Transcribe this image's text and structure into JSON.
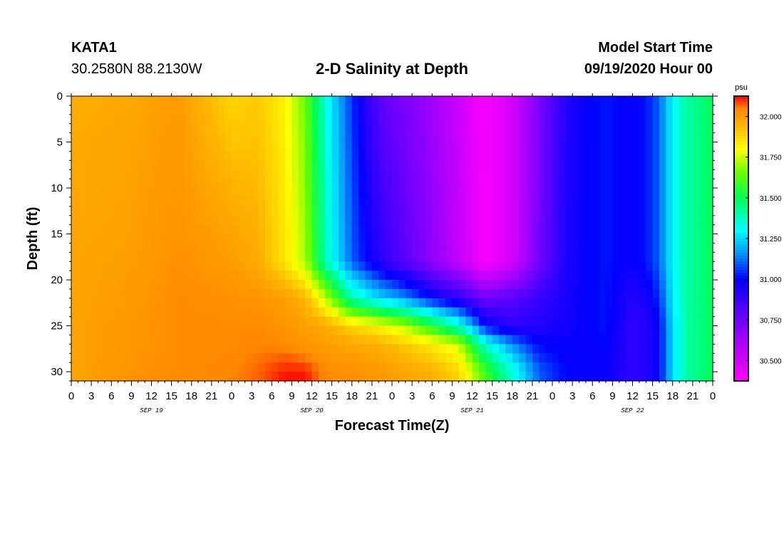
{
  "header": {
    "station_id": "KATA1",
    "station_coords": "30.2580N 88.2130W",
    "title": "2-D Salinity at Depth",
    "model_start_label": "Model Start Time",
    "model_start_value": "09/19/2020 Hour 00"
  },
  "chart_data": {
    "type": "heatmap",
    "title": "2-D Salinity at Depth",
    "xlabel": "Forecast Time(Z)",
    "ylabel": "Depth (ft)",
    "x_tick_labels": [
      "0",
      "3",
      "6",
      "9",
      "12",
      "15",
      "18",
      "21",
      "0",
      "3",
      "6",
      "9",
      "12",
      "15",
      "18",
      "21",
      "0",
      "3",
      "6",
      "9",
      "12",
      "15",
      "18",
      "21",
      "0",
      "3",
      "6",
      "9",
      "12",
      "15",
      "18",
      "21",
      "0"
    ],
    "x_range_hours": [
      0,
      96
    ],
    "day_labels": [
      {
        "text": "SEP 19",
        "hour": 12
      },
      {
        "text": "SEP 20",
        "hour": 36
      },
      {
        "text": "SEP 21",
        "hour": 60
      },
      {
        "text": "SEP 22",
        "hour": 84
      }
    ],
    "y_ticks": [
      0,
      5,
      10,
      15,
      20,
      25,
      30
    ],
    "y_range": [
      0,
      31
    ],
    "y_inverted": true,
    "colorbar": {
      "unit": "psu",
      "min": 30.375,
      "max": 32.125,
      "ticks": [
        32.0,
        31.75,
        31.5,
        31.25,
        31.0,
        30.75,
        30.5
      ],
      "tick_labels": [
        "32.000",
        "31.750",
        "31.500",
        "31.250",
        "31.000",
        "30.750",
        "30.500"
      ],
      "color_stops": [
        {
          "v": 30.375,
          "c": "#ff00ff"
        },
        {
          "v": 30.6,
          "c": "#b000ff"
        },
        {
          "v": 30.8,
          "c": "#5a00ff"
        },
        {
          "v": 31.0,
          "c": "#0000ff"
        },
        {
          "v": 31.15,
          "c": "#0090ff"
        },
        {
          "v": 31.3,
          "c": "#00ffff"
        },
        {
          "v": 31.5,
          "c": "#00ff55"
        },
        {
          "v": 31.65,
          "c": "#66ff00"
        },
        {
          "v": 31.8,
          "c": "#ffff00"
        },
        {
          "v": 31.95,
          "c": "#ffb000"
        },
        {
          "v": 32.05,
          "c": "#ff8800"
        },
        {
          "v": 32.125,
          "c": "#ff0000"
        }
      ]
    },
    "field_profiles": {
      "depths": [
        0,
        18,
        22,
        25,
        27,
        30,
        31
      ],
      "times": [
        0,
        8,
        16,
        24,
        28,
        32,
        35,
        37,
        39,
        42,
        46,
        50,
        54,
        58,
        60,
        62,
        66,
        70,
        74,
        78,
        80,
        84,
        86,
        88,
        90,
        92,
        96
      ],
      "values": [
        [
          31.96,
          31.98,
          31.98,
          31.98,
          31.98,
          31.98,
          31.98
        ],
        [
          31.97,
          31.99,
          32.0,
          32.01,
          32.01,
          32.02,
          32.02
        ],
        [
          32.0,
          32.03,
          32.04,
          32.04,
          32.04,
          32.04,
          32.04
        ],
        [
          31.88,
          32.0,
          32.03,
          32.04,
          32.04,
          32.05,
          32.05
        ],
        [
          31.9,
          31.96,
          32.02,
          32.04,
          32.05,
          32.07,
          32.07
        ],
        [
          31.82,
          31.85,
          31.99,
          32.02,
          32.04,
          32.11,
          32.12
        ],
        [
          31.65,
          31.72,
          31.94,
          31.99,
          32.01,
          32.11,
          32.12
        ],
        [
          31.45,
          31.5,
          31.82,
          31.98,
          32.0,
          32.06,
          32.06
        ],
        [
          31.26,
          31.31,
          31.66,
          31.95,
          31.99,
          32.04,
          32.04
        ],
        [
          31.05,
          31.1,
          31.4,
          31.88,
          31.97,
          32.03,
          32.03
        ],
        [
          30.8,
          30.92,
          31.25,
          31.82,
          31.95,
          32.01,
          32.01
        ],
        [
          30.72,
          30.8,
          31.15,
          31.72,
          31.9,
          31.98,
          31.98
        ],
        [
          30.64,
          30.68,
          31.0,
          31.55,
          31.84,
          31.95,
          31.95
        ],
        [
          30.52,
          30.55,
          30.9,
          31.35,
          31.75,
          31.88,
          31.88
        ],
        [
          30.45,
          30.47,
          30.82,
          31.2,
          31.55,
          31.75,
          31.75
        ],
        [
          30.4,
          30.38,
          30.75,
          31.0,
          31.35,
          31.6,
          31.6
        ],
        [
          30.5,
          30.5,
          30.8,
          30.9,
          31.15,
          31.35,
          31.35
        ],
        [
          30.72,
          30.74,
          30.88,
          30.92,
          31.0,
          31.1,
          31.1
        ],
        [
          30.92,
          30.94,
          30.95,
          30.96,
          30.98,
          31.0,
          31.0
        ],
        [
          31.0,
          31.0,
          31.0,
          31.0,
          30.99,
          30.98,
          30.98
        ],
        [
          31.02,
          31.02,
          31.02,
          31.02,
          31.0,
          30.98,
          30.98
        ],
        [
          30.98,
          30.98,
          30.92,
          30.9,
          30.9,
          30.9,
          30.9
        ],
        [
          31.02,
          31.02,
          30.95,
          30.92,
          30.92,
          30.92,
          30.92
        ],
        [
          31.1,
          31.1,
          31.05,
          31.0,
          31.0,
          31.0,
          31.0
        ],
        [
          31.3,
          31.3,
          31.28,
          31.25,
          31.25,
          31.25,
          31.25
        ],
        [
          31.4,
          31.4,
          31.4,
          31.4,
          31.4,
          31.4,
          31.4
        ],
        [
          31.5,
          31.5,
          31.5,
          31.5,
          31.5,
          31.5,
          31.5
        ]
      ]
    }
  }
}
